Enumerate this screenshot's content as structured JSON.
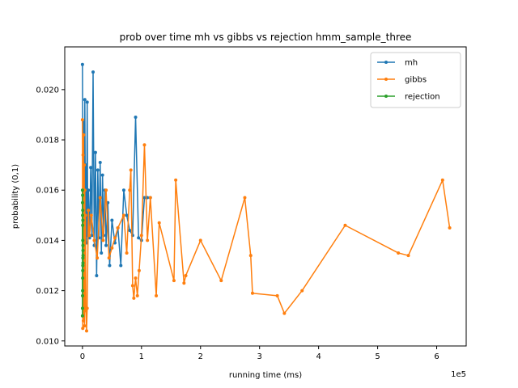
{
  "chart_data": {
    "type": "line",
    "title": "prob over time mh vs gibbs vs rejection hmm_sample_three",
    "xlabel": "running time (ms)",
    "ylabel": "probability (0,1)",
    "x_offset_label": "1e5",
    "xlim": [
      -0.3,
      6.5
    ],
    "ylim": [
      0.0098,
      0.0217
    ],
    "x_ticks": [
      0,
      1,
      2,
      3,
      4,
      5,
      6
    ],
    "y_ticks": [
      0.01,
      0.012,
      0.014,
      0.016,
      0.018,
      0.02
    ],
    "y_tick_labels": [
      "0.010",
      "0.012",
      "0.014",
      "0.016",
      "0.018",
      "0.020"
    ],
    "legend_position": "top-right",
    "series": [
      {
        "name": "mh",
        "color": "#1f77b4",
        "x": [
          0.0,
          0.01,
          0.02,
          0.03,
          0.04,
          0.05,
          0.06,
          0.07,
          0.08,
          0.09,
          0.1,
          0.12,
          0.14,
          0.16,
          0.18,
          0.2,
          0.22,
          0.24,
          0.26,
          0.28,
          0.3,
          0.32,
          0.34,
          0.36,
          0.38,
          0.4,
          0.43,
          0.46,
          0.5,
          0.55,
          0.6,
          0.65,
          0.7,
          0.75,
          0.8,
          0.85,
          0.9,
          0.95,
          1.0,
          1.05,
          1.1,
          1.15
        ],
        "y": [
          0.021,
          0.0146,
          0.0187,
          0.0152,
          0.0196,
          0.0148,
          0.017,
          0.0139,
          0.0195,
          0.0142,
          0.016,
          0.0141,
          0.0169,
          0.0142,
          0.0207,
          0.0138,
          0.0175,
          0.0126,
          0.0168,
          0.0141,
          0.0171,
          0.0135,
          0.0166,
          0.0142,
          0.016,
          0.0138,
          0.0155,
          0.013,
          0.0148,
          0.0139,
          0.0145,
          0.013,
          0.016,
          0.015,
          0.0144,
          0.0142,
          0.0189,
          0.0141,
          0.014,
          0.0157,
          0.0157,
          0.0157
        ]
      },
      {
        "name": "gibbs",
        "color": "#ff7f0e",
        "x": [
          0.0,
          0.005,
          0.01,
          0.015,
          0.02,
          0.025,
          0.03,
          0.035,
          0.04,
          0.045,
          0.05,
          0.06,
          0.07,
          0.08,
          0.1,
          0.12,
          0.15,
          0.2,
          0.25,
          0.3,
          0.35,
          0.4,
          0.45,
          0.5,
          0.55,
          0.6,
          0.7,
          0.75,
          0.8,
          0.82,
          0.85,
          0.87,
          0.9,
          0.93,
          0.96,
          1.0,
          1.05,
          1.1,
          1.15,
          1.25,
          1.3,
          1.55,
          1.58,
          1.72,
          1.75,
          2.0,
          2.35,
          2.75,
          2.85,
          2.88,
          3.3,
          3.42,
          3.72,
          4.45,
          5.35,
          5.52,
          6.1,
          6.22
        ],
        "y": [
          0.0188,
          0.0105,
          0.0174,
          0.0108,
          0.0182,
          0.0112,
          0.017,
          0.0106,
          0.016,
          0.0113,
          0.015,
          0.0112,
          0.0104,
          0.0113,
          0.0152,
          0.0142,
          0.015,
          0.014,
          0.0133,
          0.0157,
          0.014,
          0.016,
          0.0133,
          0.0137,
          0.0141,
          0.0145,
          0.015,
          0.0135,
          0.016,
          0.0168,
          0.0122,
          0.0117,
          0.0125,
          0.0118,
          0.0128,
          0.0142,
          0.0178,
          0.014,
          0.0157,
          0.0118,
          0.0147,
          0.0124,
          0.0164,
          0.0123,
          0.0126,
          0.014,
          0.0124,
          0.0157,
          0.0134,
          0.0119,
          0.0118,
          0.0111,
          0.012,
          0.0146,
          0.0135,
          0.0134,
          0.0164,
          0.0145
        ]
      },
      {
        "name": "rejection",
        "color": "#2ca02c",
        "x": [
          0.0,
          0.0,
          0.001,
          0.001,
          0.002,
          0.002,
          0.003,
          0.003,
          0.004,
          0.004,
          0.005,
          0.005,
          0.006,
          0.006,
          0.007,
          0.007,
          0.008,
          0.008,
          0.009,
          0.01
        ],
        "y": [
          0.016,
          0.011,
          0.0155,
          0.0113,
          0.015,
          0.0118,
          0.0158,
          0.012,
          0.0146,
          0.0125,
          0.0152,
          0.0128,
          0.014,
          0.013,
          0.0148,
          0.0133,
          0.0138,
          0.0131,
          0.0136,
          0.0134
        ]
      }
    ]
  }
}
